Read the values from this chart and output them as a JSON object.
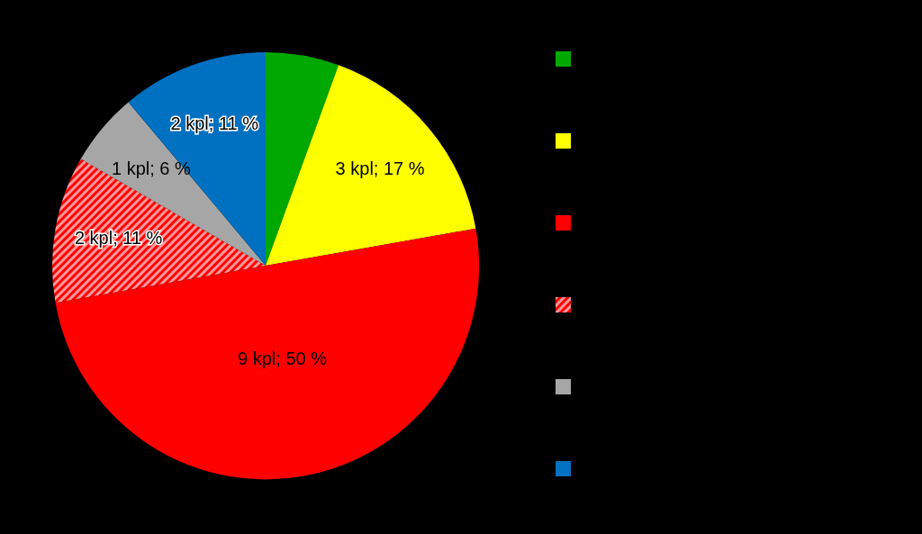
{
  "chart_data": {
    "type": "pie",
    "categories": [
      null,
      null,
      null,
      null,
      null,
      null
    ],
    "values": [
      1,
      3,
      9,
      2,
      1,
      2
    ],
    "colors": [
      "#00a800",
      "#ffff00",
      "#ff0000",
      "#ff0000",
      "#a6a6a6",
      "#0070c0"
    ],
    "value_labels": [
      null,
      "3 kpl; 17 %",
      "9 kpl; 50 %",
      "2 kpl; 11 %",
      "1 kpl; 6 %",
      "2 kpl; 11 %"
    ]
  }
}
